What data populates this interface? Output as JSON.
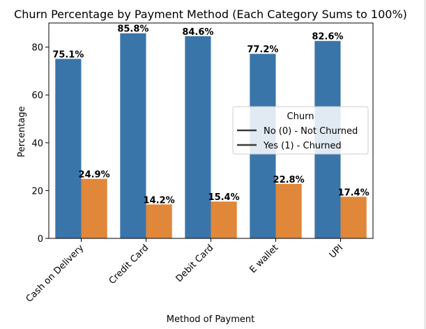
{
  "chart_data": {
    "type": "bar",
    "title": "Churn Percentage by Payment Method (Each Category Sums to 100%)",
    "xlabel": "Method of Payment",
    "ylabel": "Percentage",
    "categories": [
      "Cash on Delivery",
      "Credit Card",
      "Debit Card",
      "E wallet",
      "UPI"
    ],
    "series": [
      {
        "name": "No (0) - Not Churned",
        "color": "#3a75aa",
        "values": [
          75.1,
          85.8,
          84.6,
          77.2,
          82.6
        ],
        "labels": [
          "75.1%",
          "85.8%",
          "84.6%",
          "77.2%",
          "82.6%"
        ]
      },
      {
        "name": "Yes (1) - Churned",
        "color": "#e0873a",
        "values": [
          24.9,
          14.2,
          15.4,
          22.8,
          17.4
        ],
        "labels": [
          "24.9%",
          "14.2%",
          "15.4%",
          "22.8%",
          "17.4%"
        ]
      }
    ],
    "ylim": [
      0,
      90.1
    ],
    "yticks": [
      0,
      20,
      40,
      60,
      80
    ],
    "grid": false,
    "legend": {
      "title": "Churn",
      "placement": "center-right"
    }
  }
}
